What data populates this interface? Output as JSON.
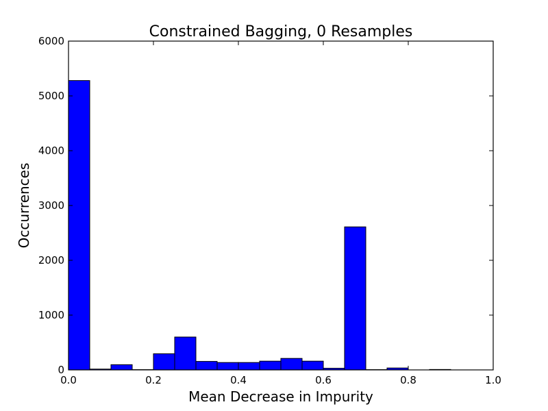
{
  "chart_data": {
    "type": "bar",
    "title": "Constrained Bagging, 0 Resamples",
    "xlabel": "Mean Decrease in Impurity",
    "ylabel": "Occurrences",
    "xlim": [
      0.0,
      1.0
    ],
    "ylim": [
      0,
      6000
    ],
    "xticks": [
      "0.0",
      "0.2",
      "0.4",
      "0.6",
      "0.8",
      "1.0"
    ],
    "yticks": [
      "0",
      "1000",
      "2000",
      "3000",
      "4000",
      "5000",
      "6000"
    ],
    "bin_width": 0.05,
    "bins": [
      {
        "x0": 0.0,
        "x1": 0.05,
        "count": 5280
      },
      {
        "x0": 0.05,
        "x1": 0.1,
        "count": 15
      },
      {
        "x0": 0.1,
        "x1": 0.15,
        "count": 95
      },
      {
        "x0": 0.15,
        "x1": 0.2,
        "count": 5
      },
      {
        "x0": 0.2,
        "x1": 0.25,
        "count": 295
      },
      {
        "x0": 0.25,
        "x1": 0.3,
        "count": 600
      },
      {
        "x0": 0.3,
        "x1": 0.35,
        "count": 155
      },
      {
        "x0": 0.35,
        "x1": 0.4,
        "count": 135
      },
      {
        "x0": 0.4,
        "x1": 0.45,
        "count": 135
      },
      {
        "x0": 0.45,
        "x1": 0.5,
        "count": 160
      },
      {
        "x0": 0.5,
        "x1": 0.55,
        "count": 210
      },
      {
        "x0": 0.55,
        "x1": 0.6,
        "count": 160
      },
      {
        "x0": 0.6,
        "x1": 0.65,
        "count": 30
      },
      {
        "x0": 0.65,
        "x1": 0.7,
        "count": 2610
      },
      {
        "x0": 0.7,
        "x1": 0.75,
        "count": 5
      },
      {
        "x0": 0.75,
        "x1": 0.8,
        "count": 35
      },
      {
        "x0": 0.8,
        "x1": 0.85,
        "count": 0
      },
      {
        "x0": 0.85,
        "x1": 0.9,
        "count": 8
      },
      {
        "x0": 0.9,
        "x1": 0.95,
        "count": 0
      },
      {
        "x0": 0.95,
        "x1": 1.0,
        "count": 0
      }
    ],
    "bar_color": "#0000ff",
    "grid": false,
    "legend": "none"
  }
}
